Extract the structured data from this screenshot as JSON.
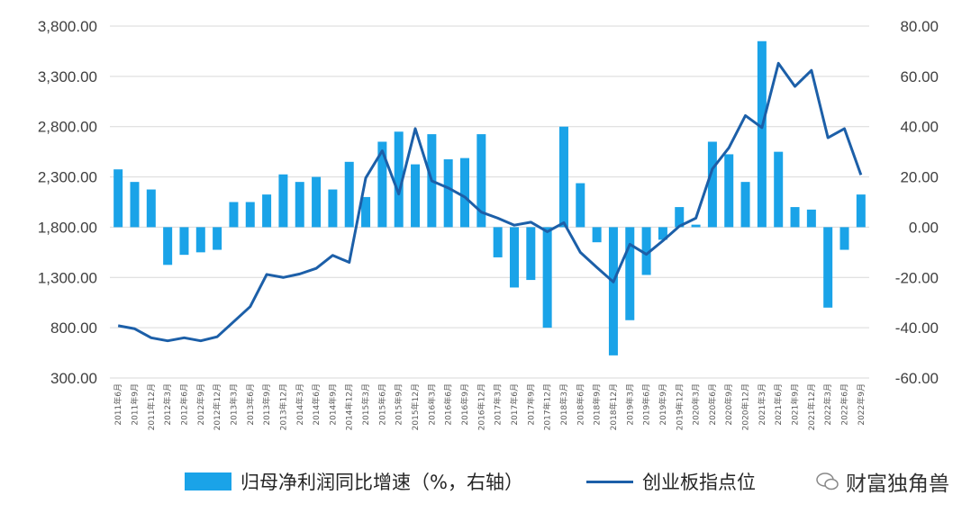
{
  "chart_data": {
    "type": "bar+line",
    "title": "",
    "categories": [
      "2011年6月",
      "2011年9月",
      "2011年12月",
      "2012年3月",
      "2012年6月",
      "2012年9月",
      "2012年12月",
      "2013年3月",
      "2013年6月",
      "2013年9月",
      "2013年12月",
      "2014年3月",
      "2014年6月",
      "2014年9月",
      "2014年12月",
      "2015年3月",
      "2015年6月",
      "2015年9月",
      "2015年12月",
      "2016年3月",
      "2016年6月",
      "2016年9月",
      "2016年12月",
      "2017年3月",
      "2017年6月",
      "2017年9月",
      "2017年12月",
      "2018年3月",
      "2018年6月",
      "2018年9月",
      "2018年12月",
      "2019年3月",
      "2019年6月",
      "2019年9月",
      "2019年12月",
      "2020年3月",
      "2020年6月",
      "2020年9月",
      "2020年12月",
      "2021年3月",
      "2021年6月",
      "2021年9月",
      "2021年12月",
      "2022年3月",
      "2022年6月",
      "2022年9月"
    ],
    "series": [
      {
        "name": "归母净利润同比增速（%，右轴）",
        "type": "bar",
        "axis": "right",
        "color": "#1aa3e8",
        "values": [
          23,
          18,
          15,
          -15,
          -11,
          -10,
          -9,
          10,
          10,
          13,
          21,
          18,
          20,
          15,
          26,
          12,
          34,
          38,
          25,
          37,
          27,
          27.5,
          37,
          -12,
          -24,
          -21,
          -40,
          40,
          17.5,
          -6,
          -51,
          -37,
          -19,
          -5,
          8,
          1,
          34,
          29,
          18,
          74,
          30,
          8,
          7,
          -32,
          -9,
          13
        ]
      },
      {
        "name": "创业板指点位",
        "type": "line",
        "axis": "left",
        "color": "#1c5fa8",
        "values": [
          820,
          790,
          700,
          670,
          700,
          670,
          710,
          860,
          1010,
          1330,
          1300,
          1335,
          1390,
          1520,
          1450,
          2290,
          2560,
          2130,
          2780,
          2260,
          2190,
          2100,
          1950,
          1890,
          1820,
          1850,
          1755,
          1845,
          1550,
          1400,
          1255,
          1630,
          1530,
          1665,
          1810,
          1890,
          2380,
          2590,
          2910,
          2790,
          3430,
          3200,
          3360,
          2690,
          2780,
          2320
        ]
      }
    ],
    "left_axis": {
      "ticks": [
        "3,800.00",
        "3,300.00",
        "2,800.00",
        "2,300.00",
        "1,800.00",
        "1,300.00",
        "800.00",
        "300.00"
      ],
      "range": [
        300,
        3800
      ]
    },
    "right_axis": {
      "ticks": [
        "80.00",
        "60.00",
        "40.00",
        "20.00",
        "0.00",
        "-20.00",
        "-40.00",
        "-60.00"
      ],
      "range": [
        -60,
        80
      ]
    },
    "grid": true,
    "legend_position": "bottom"
  },
  "legend": {
    "bar_label": "归母净利润同比增速（%，右轴）",
    "line_label": "创业板指点位"
  },
  "watermark": "财富独角兽"
}
